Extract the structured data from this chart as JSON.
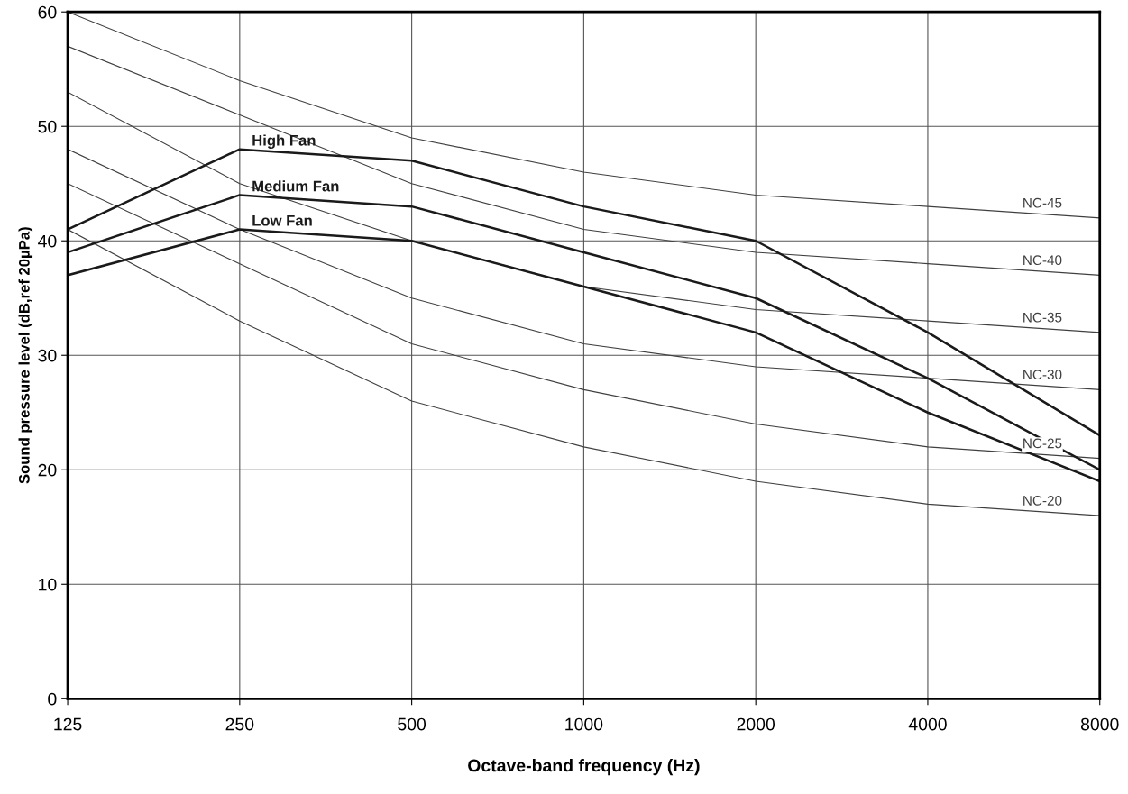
{
  "chart_data": {
    "type": "line",
    "xlabel": "Octave-band frequency (Hz)",
    "ylabel": "Sound pressure level (dB,ref 20µPa)",
    "categories": [
      "125",
      "250",
      "500",
      "1000",
      "2000",
      "4000",
      "8000"
    ],
    "series": [
      {
        "name": "NC-45",
        "color": "#404040",
        "values": [
          60,
          54,
          49,
          46,
          44,
          43,
          42
        ]
      },
      {
        "name": "NC-40",
        "color": "#404040",
        "values": [
          57,
          51,
          45,
          41,
          39,
          38,
          37
        ]
      },
      {
        "name": "NC-35",
        "color": "#404040",
        "values": [
          53,
          45,
          40,
          36,
          34,
          33,
          32
        ]
      },
      {
        "name": "NC-30",
        "color": "#404040",
        "values": [
          48,
          41,
          35,
          31,
          29,
          28,
          27
        ]
      },
      {
        "name": "NC-25",
        "color": "#404040",
        "values": [
          45,
          38,
          31,
          27,
          24,
          22,
          21
        ]
      },
      {
        "name": "NC-20",
        "color": "#404040",
        "values": [
          41,
          33,
          26,
          22,
          19,
          17,
          16
        ]
      },
      {
        "name": "High Fan",
        "color": "#1a1a1a",
        "values": [
          41,
          48,
          47,
          43,
          40,
          32,
          23
        ]
      },
      {
        "name": "Medium Fan",
        "color": "#1a1a1a",
        "values": [
          39,
          44,
          43,
          39,
          35,
          28,
          20
        ]
      },
      {
        "name": "Low Fan",
        "color": "#1a1a1a",
        "values": [
          37,
          41,
          40,
          36,
          32,
          25,
          19
        ]
      }
    ],
    "ylim": [
      0,
      60
    ],
    "yticks": [
      0,
      10,
      20,
      30,
      40,
      50,
      60
    ],
    "grid": true,
    "marker": "none",
    "line_style": "solid"
  }
}
